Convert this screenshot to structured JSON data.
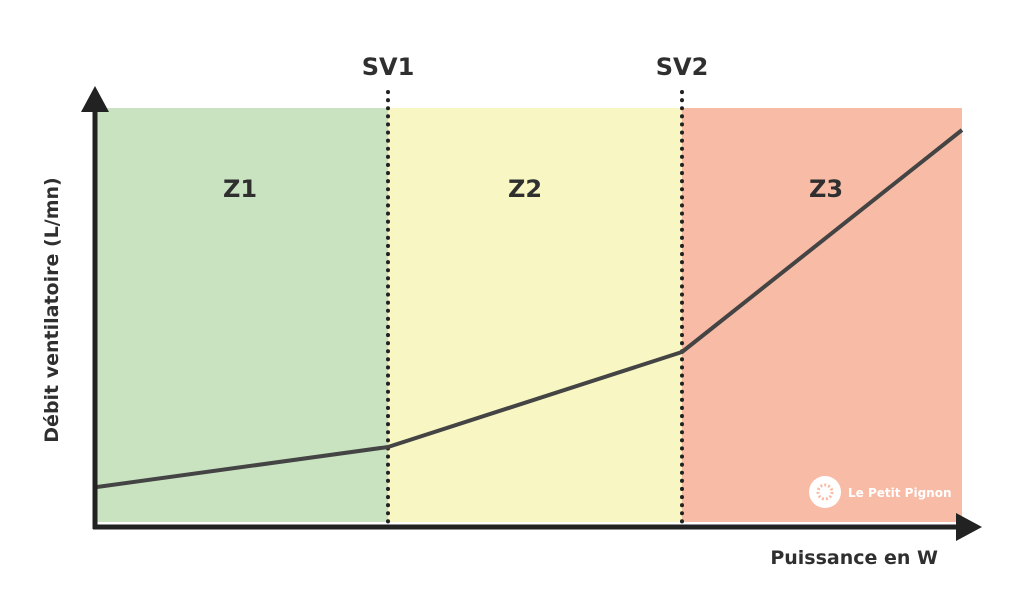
{
  "axes": {
    "y_label": "Débit ventilatoire (L/mn)",
    "x_label": "Puissance en W"
  },
  "thresholds": [
    "SV1",
    "SV2"
  ],
  "zones": [
    "Z1",
    "Z2",
    "Z3"
  ],
  "logo": "Le Petit Pignon"
}
